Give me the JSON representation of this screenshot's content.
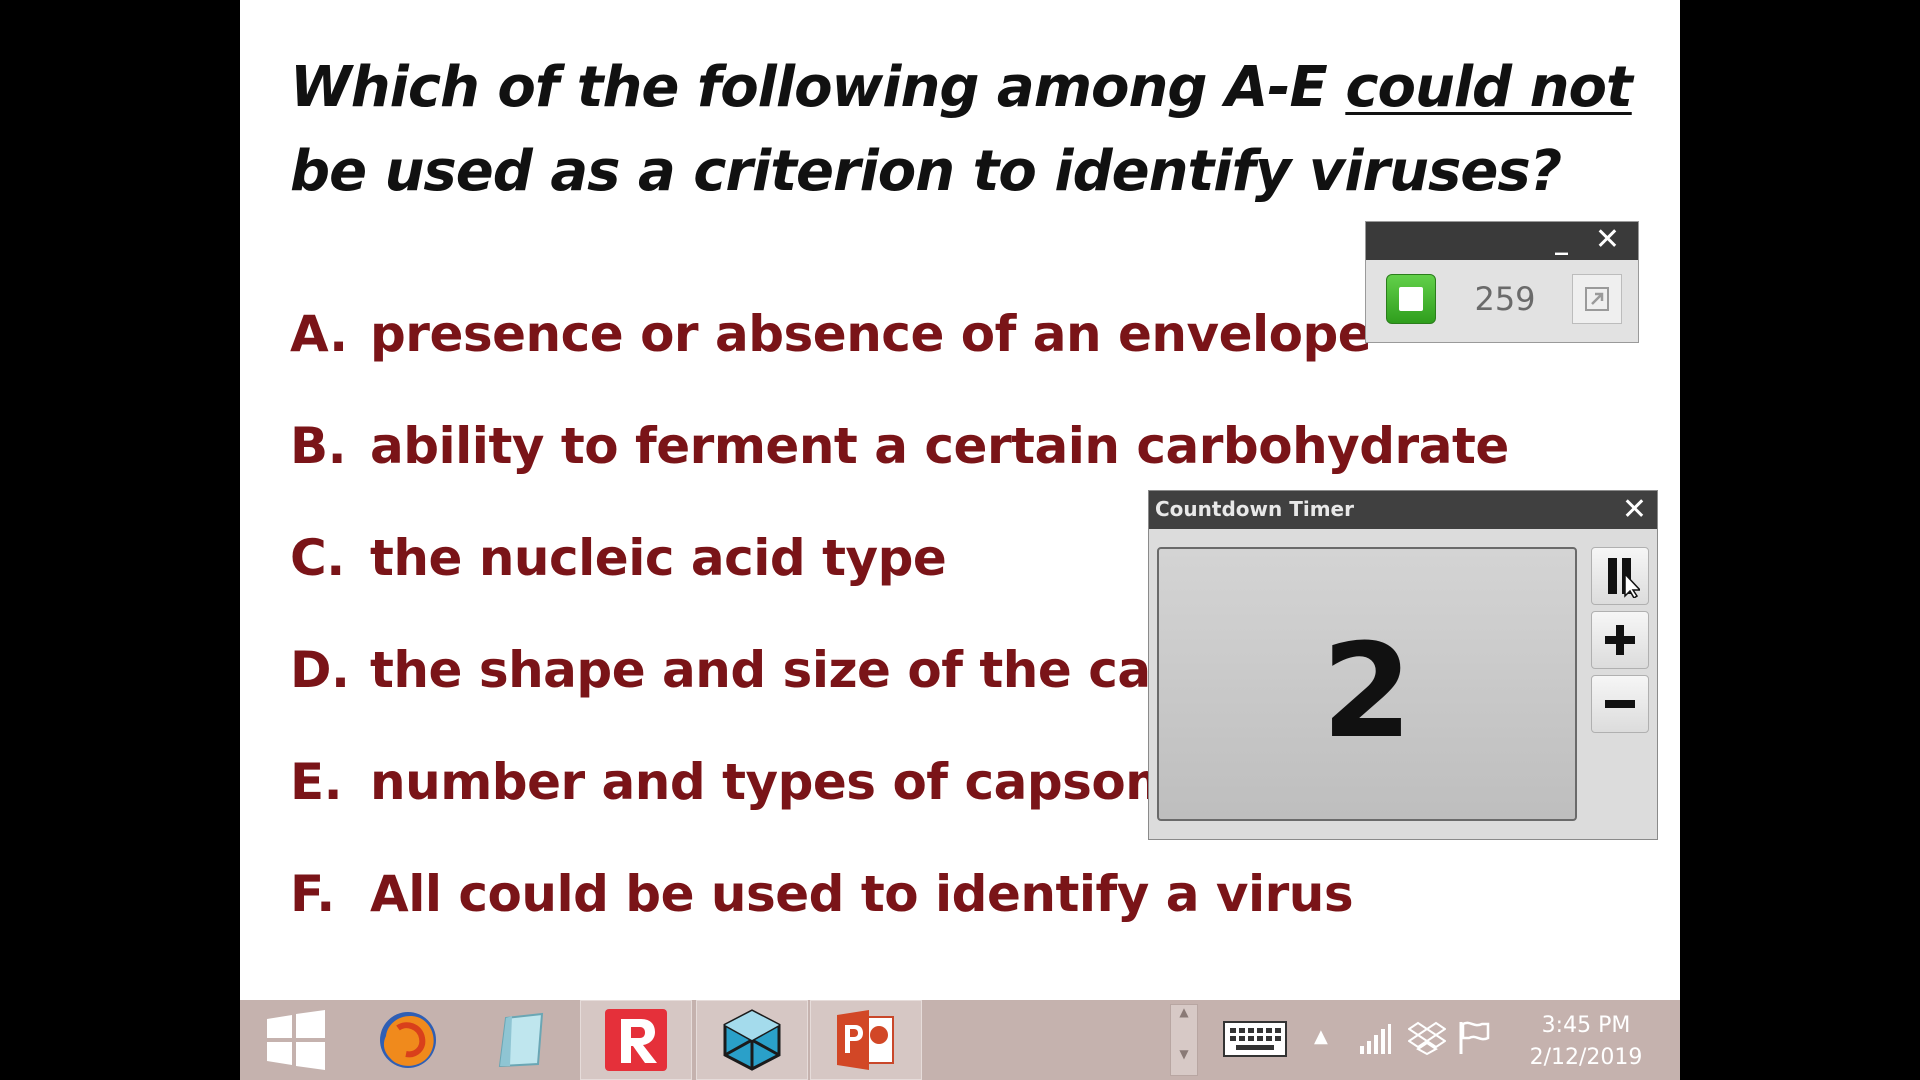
{
  "slide": {
    "question_part1": "Which of the following among A-E ",
    "question_underlined": "could not",
    "question_part2": "be used as a criterion to identify viruses?",
    "options": [
      {
        "letter": "A.",
        "text": "presence or absence of an envelope"
      },
      {
        "letter": "B.",
        "text": "ability to ferment a certain carbohydrate"
      },
      {
        "letter": "C.",
        "text": "the nucleic acid type"
      },
      {
        "letter": "D.",
        "text": "the shape and size of the caps"
      },
      {
        "letter": "E.",
        "text": "number and types of capsome"
      },
      {
        "letter": "F.",
        "text": "All could be used to identify a virus"
      }
    ],
    "question_color": "#111111",
    "option_color": "#7a1418"
  },
  "poll_widget": {
    "minimize_label": "_",
    "close_label": "✕",
    "stop_icon": "stop-square-icon",
    "response_count": "259",
    "restore_icon": "restore-window-icon"
  },
  "countdown_timer": {
    "title": "Countdown Timer",
    "close_label": "✕",
    "value": "2",
    "buttons": [
      "pause-icon",
      "plus-icon",
      "minus-icon"
    ]
  },
  "taskbar": {
    "apps": [
      "windows-start-icon",
      "firefox-icon",
      "notepad-icon",
      "r-app-icon",
      "cube-app-icon",
      "powerpoint-icon"
    ],
    "clock_time": "3:45 PM",
    "clock_date": "2/12/2019",
    "background": "#c5b2ae"
  }
}
